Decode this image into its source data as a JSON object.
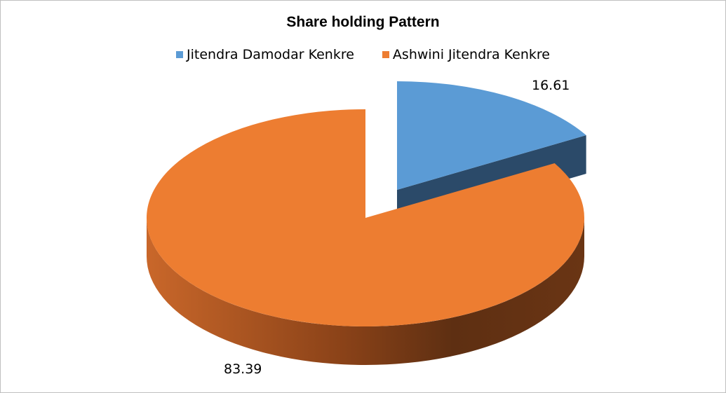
{
  "chart_data": {
    "type": "pie",
    "style": "3d-exploded",
    "title": "Share holding  Pattern",
    "legend_position": "top",
    "series": [
      {
        "name": "Jitendra Damodar Kenkre",
        "value": 16.61,
        "label": "16.61",
        "color": "#5b9bd5",
        "exploded": true
      },
      {
        "name": "Ashwini Jitendra Kenkre",
        "value": 83.39,
        "label": "83.39",
        "color": "#ed7d31",
        "exploded": false
      }
    ]
  }
}
